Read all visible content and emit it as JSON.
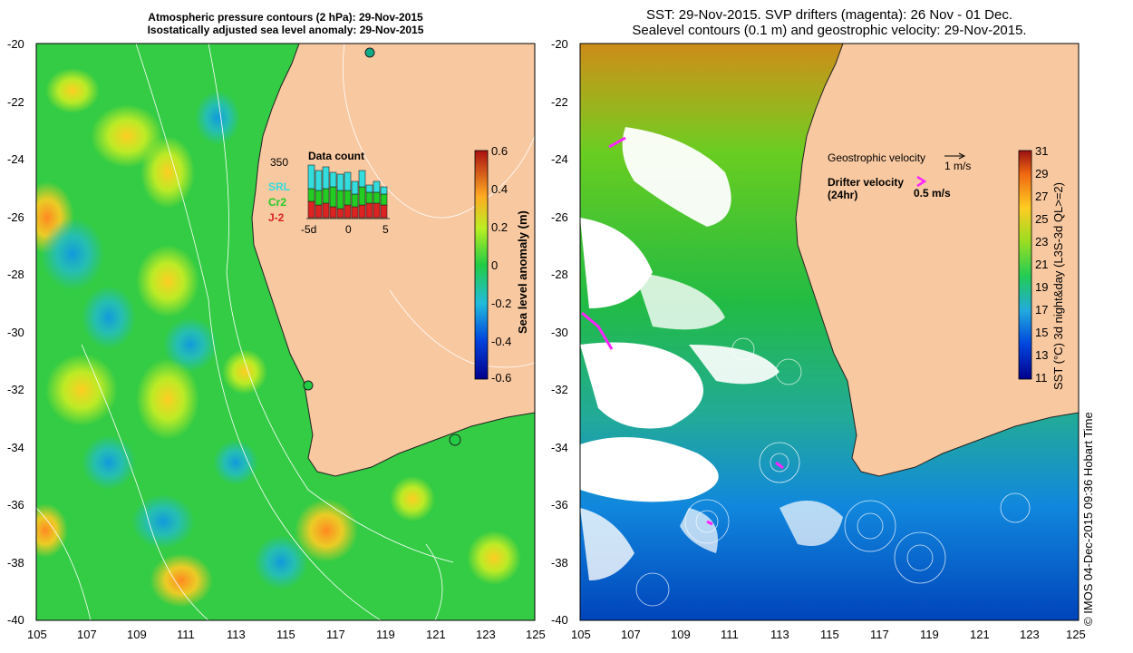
{
  "left_panel": {
    "title_line1": "Atmospheric pressure contours (2 hPa): 29-Nov-2015",
    "title_line2": "Isostatically adjusted sea level anomaly: 29-Nov-2015",
    "x_ticks": [
      "105",
      "107",
      "109",
      "111",
      "113",
      "115",
      "117",
      "119",
      "121",
      "123",
      "125"
    ],
    "y_ticks": [
      "-20",
      "-22",
      "-24",
      "-26",
      "-28",
      "-30",
      "-32",
      "-34",
      "-36",
      "-38",
      "-40"
    ],
    "colorbar": {
      "label": "Sea level anomaly (m)",
      "ticks": [
        "0.6",
        "0.4",
        "0.2",
        "0",
        "-0.2",
        "-0.4",
        "-0.6"
      ],
      "min": -0.6,
      "max": 0.6
    },
    "data_count": {
      "title": "Data count",
      "max_label": "350",
      "x_ticks": [
        "-5d",
        "0",
        "5"
      ],
      "legend": [
        {
          "label": "SRL",
          "color": "#33dddd"
        },
        {
          "label": "Cr2",
          "color": "#22cc22"
        },
        {
          "label": "J-2",
          "color": "#dd2222"
        }
      ]
    }
  },
  "right_panel": {
    "title_line1": "SST: 29-Nov-2015. SVP drifters (magenta): 26 Nov - 01 Dec.",
    "title_line2": "Sealevel contours (0.1 m) and geostrophic velocity: 29-Nov-2015.",
    "x_ticks": [
      "105",
      "107",
      "109",
      "111",
      "113",
      "115",
      "117",
      "119",
      "121",
      "123",
      "125"
    ],
    "y_ticks": [
      "-20",
      "-22",
      "-24",
      "-26",
      "-28",
      "-30",
      "-32",
      "-34",
      "-36",
      "-38",
      "-40"
    ],
    "legend": {
      "geostrophic_label": "Geostrophic velocity",
      "geostrophic_scale": "1 m/s",
      "drifter_label": "Drifter velocity",
      "drifter_sub": "(24hr)",
      "drifter_scale": "0.5 m/s"
    },
    "colorbar": {
      "label": "SST (°C) 3d night&day (L3S-3d QL>=2)",
      "ticks": [
        "31",
        "29",
        "27",
        "25",
        "23",
        "21",
        "19",
        "17",
        "15",
        "13",
        "11"
      ],
      "min": 11,
      "max": 31
    }
  },
  "credit": "© IMOS 04-Dec-2015 09:36 Hobart Time",
  "colors": {
    "land": "#f8c8a0",
    "ocean_green": "#33cc44",
    "sst_blue": "#2288dd",
    "drifter": "#ff22ff"
  }
}
